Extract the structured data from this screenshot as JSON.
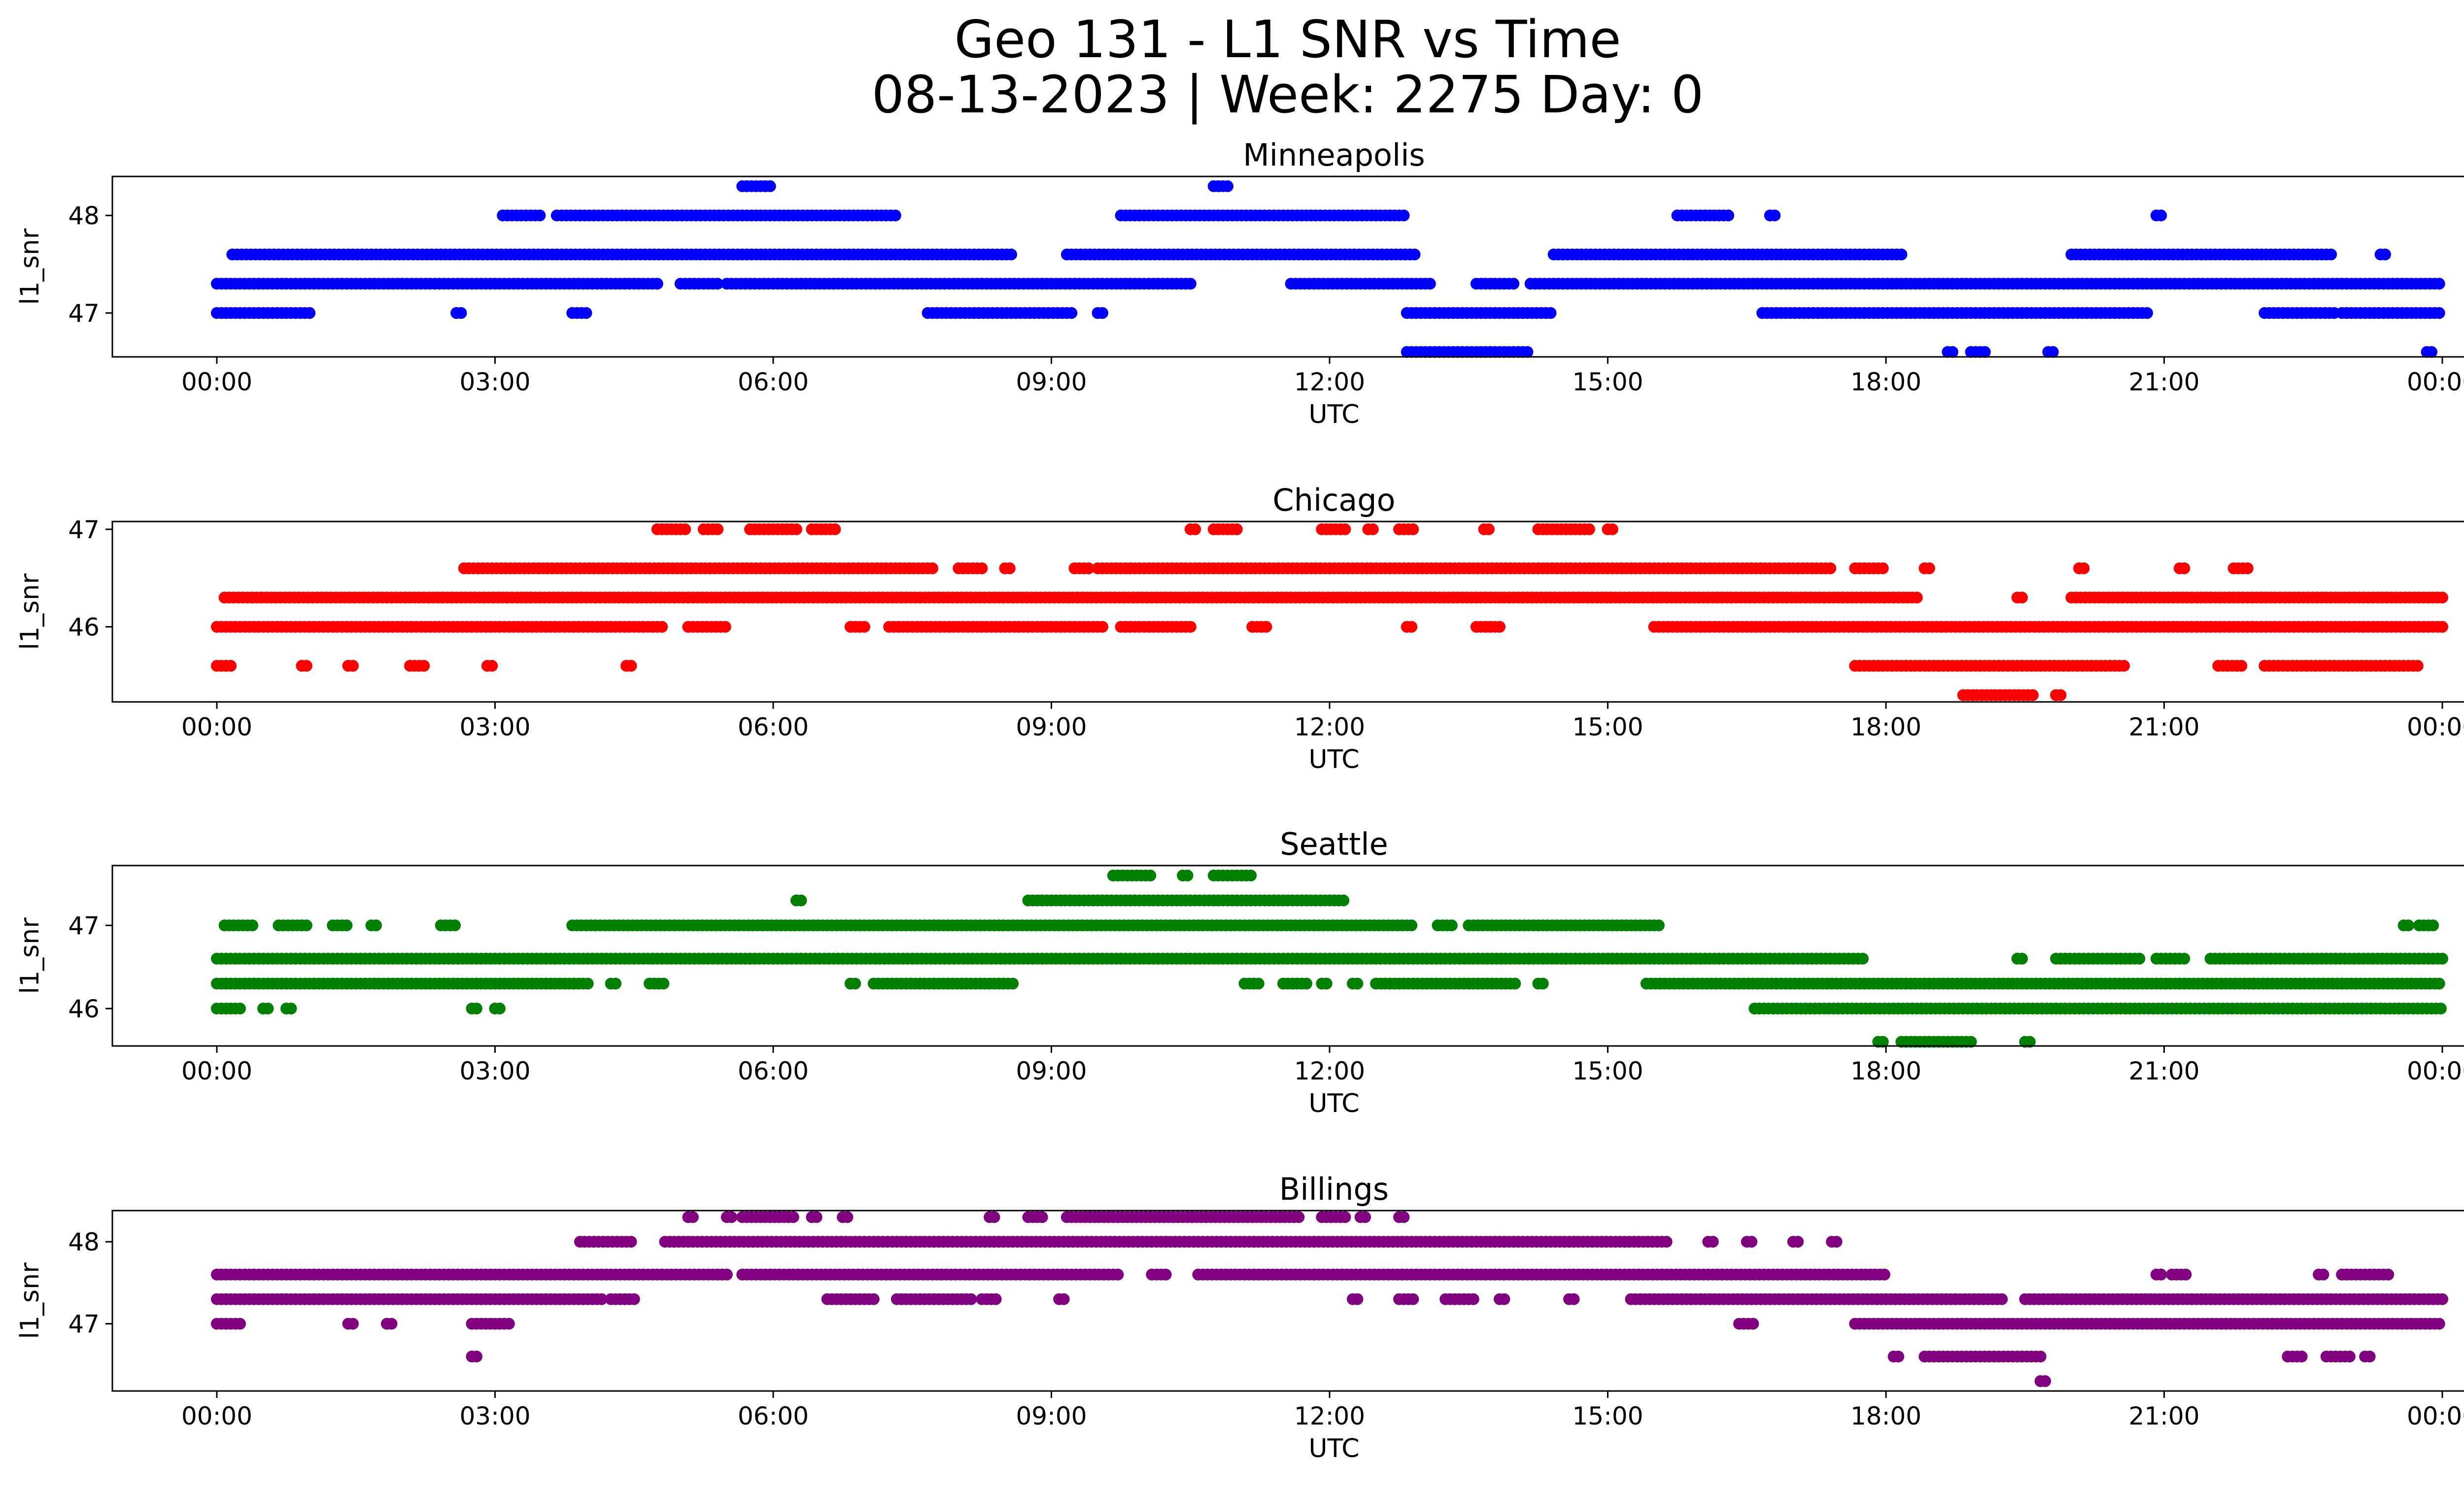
{
  "figure": {
    "title_line1": "Geo 131 - L1 SNR vs Time",
    "title_line2": "08-13-2023 | Week: 2275 Day: 0"
  },
  "chart_data": [
    {
      "type": "scatter",
      "title": "Minneapolis",
      "color": "#0000ff",
      "xlabel": "UTC",
      "ylabel": "l1_snr",
      "xlim": [
        "23:00",
        "00:22"
      ],
      "ylim": [
        46.55,
        48.4
      ],
      "xticks": [
        "00:00",
        "03:00",
        "06:00",
        "09:00",
        "12:00",
        "15:00",
        "18:00",
        "21:00",
        "00:00"
      ],
      "yticks": [
        47,
        48
      ],
      "grid": false,
      "bands": [
        {
          "y": 47.0,
          "segments": [
            [
              "00:00",
              "01:00"
            ],
            [
              "02:35",
              "02:40"
            ],
            [
              "03:50",
              "04:00"
            ],
            [
              "07:40",
              "09:15"
            ],
            [
              "09:30",
              "09:35"
            ],
            [
              "12:50",
              "14:25"
            ],
            [
              "16:40",
              "20:50"
            ],
            [
              "22:05",
              "22:50"
            ],
            [
              "22:55",
              "24:00"
            ]
          ]
        },
        {
          "y": 47.3,
          "segments": [
            [
              "00:00",
              "04:45"
            ],
            [
              "05:00",
              "05:25"
            ],
            [
              "05:30",
              "10:30"
            ],
            [
              "11:35",
              "13:05"
            ],
            [
              "13:35",
              "14:00"
            ],
            [
              "14:10",
              "24:00"
            ]
          ]
        },
        {
          "y": 47.6,
          "segments": [
            [
              "00:10",
              "08:35"
            ],
            [
              "09:10",
              "12:55"
            ],
            [
              "14:25",
              "18:10"
            ],
            [
              "20:00",
              "22:50"
            ],
            [
              "23:20",
              "23:25"
            ]
          ]
        },
        {
          "y": 48.0,
          "segments": [
            [
              "03:05",
              "03:30"
            ],
            [
              "03:40",
              "07:20"
            ],
            [
              "09:45",
              "12:50"
            ],
            [
              "15:45",
              "16:20"
            ],
            [
              "16:45",
              "16:50"
            ],
            [
              "20:55",
              "21:00"
            ]
          ]
        },
        {
          "y": 48.3,
          "segments": [
            [
              "05:40",
              "06:00"
            ],
            [
              "10:45",
              "10:55"
            ]
          ]
        },
        {
          "y": 46.6,
          "segments": [
            [
              "12:50",
              "14:10"
            ],
            [
              "18:40",
              "18:45"
            ],
            [
              "18:55",
              "19:05"
            ],
            [
              "19:45",
              "19:50"
            ],
            [
              "23:50",
              "23:55"
            ]
          ]
        }
      ]
    },
    {
      "type": "scatter",
      "title": "Chicago",
      "color": "#ff0000",
      "xlabel": "UTC",
      "ylabel": "l1_snr",
      "xlim": [
        "23:00",
        "00:22"
      ],
      "ylim": [
        45.23,
        47.08
      ],
      "xticks": [
        "00:00",
        "03:00",
        "06:00",
        "09:00",
        "12:00",
        "15:00",
        "18:00",
        "21:00",
        "00:00"
      ],
      "yticks": [
        46,
        47
      ],
      "grid": false,
      "bands": [
        {
          "y": 45.6,
          "segments": [
            [
              "00:00",
              "00:10"
            ],
            [
              "00:55",
              "01:00"
            ],
            [
              "01:25",
              "01:30"
            ],
            [
              "02:05",
              "02:15"
            ],
            [
              "02:55",
              "03:00"
            ],
            [
              "04:25",
              "04:30"
            ],
            [
              "17:40",
              "20:35"
            ],
            [
              "21:35",
              "21:50"
            ],
            [
              "22:05",
              "23:45"
            ]
          ]
        },
        {
          "y": 45.3,
          "segments": [
            [
              "18:50",
              "19:35"
            ],
            [
              "19:50",
              "19:55"
            ]
          ]
        },
        {
          "y": 46.0,
          "segments": [
            [
              "00:00",
              "04:50"
            ],
            [
              "05:05",
              "05:30"
            ],
            [
              "06:50",
              "07:00"
            ],
            [
              "07:15",
              "09:35"
            ],
            [
              "09:45",
              "10:30"
            ],
            [
              "11:10",
              "11:20"
            ],
            [
              "12:50",
              "12:55"
            ],
            [
              "13:35",
              "13:50"
            ],
            [
              "15:30",
              "24:00"
            ]
          ]
        },
        {
          "y": 46.3,
          "segments": [
            [
              "00:05",
              "18:20"
            ],
            [
              "19:25",
              "19:30"
            ],
            [
              "20:00",
              "24:00"
            ]
          ]
        },
        {
          "y": 46.6,
          "segments": [
            [
              "02:40",
              "07:45"
            ],
            [
              "08:00",
              "08:15"
            ],
            [
              "08:30",
              "08:35"
            ],
            [
              "09:15",
              "09:25"
            ],
            [
              "09:30",
              "17:25"
            ],
            [
              "17:40",
              "18:00"
            ],
            [
              "18:25",
              "18:30"
            ],
            [
              "20:05",
              "20:10"
            ],
            [
              "21:10",
              "21:15"
            ],
            [
              "21:45",
              "21:55"
            ]
          ]
        },
        {
          "y": 47.0,
          "segments": [
            [
              "04:45",
              "05:05"
            ],
            [
              "05:15",
              "05:25"
            ],
            [
              "05:45",
              "06:15"
            ],
            [
              "06:25",
              "06:40"
            ],
            [
              "10:30",
              "10:35"
            ],
            [
              "10:45",
              "11:00"
            ],
            [
              "11:55",
              "12:10"
            ],
            [
              "12:25",
              "12:30"
            ],
            [
              "12:45",
              "12:55"
            ],
            [
              "13:40",
              "13:45"
            ],
            [
              "14:15",
              "14:50"
            ],
            [
              "15:00",
              "15:05"
            ]
          ]
        }
      ]
    },
    {
      "type": "scatter",
      "title": "Seattle",
      "color": "#008000",
      "xlabel": "UTC",
      "ylabel": "l1_snr",
      "xlim": [
        "23:00",
        "00:22"
      ],
      "ylim": [
        45.55,
        47.72
      ],
      "xticks": [
        "00:00",
        "03:00",
        "06:00",
        "09:00",
        "12:00",
        "15:00",
        "18:00",
        "21:00",
        "00:00"
      ],
      "yticks": [
        46,
        47
      ],
      "grid": false,
      "bands": [
        {
          "y": 46.0,
          "segments": [
            [
              "00:00",
              "00:15"
            ],
            [
              "00:30",
              "00:35"
            ],
            [
              "00:45",
              "00:50"
            ],
            [
              "02:45",
              "02:50"
            ],
            [
              "03:00",
              "03:05"
            ],
            [
              "16:35",
              "24:00"
            ]
          ]
        },
        {
          "y": 46.3,
          "segments": [
            [
              "00:00",
              "04:00"
            ],
            [
              "04:15",
              "04:20"
            ],
            [
              "04:40",
              "04:50"
            ],
            [
              "06:50",
              "06:55"
            ],
            [
              "07:05",
              "08:35"
            ],
            [
              "11:05",
              "11:15"
            ],
            [
              "11:30",
              "11:45"
            ],
            [
              "11:55",
              "12:00"
            ],
            [
              "12:15",
              "12:20"
            ],
            [
              "12:30",
              "14:00"
            ],
            [
              "14:15",
              "14:20"
            ],
            [
              "15:25",
              "24:00"
            ]
          ]
        },
        {
          "y": 46.6,
          "segments": [
            [
              "00:00",
              "17:45"
            ],
            [
              "19:25",
              "19:30"
            ],
            [
              "19:50",
              "20:45"
            ],
            [
              "20:55",
              "21:15"
            ],
            [
              "21:30",
              "24:00"
            ]
          ]
        },
        {
          "y": 47.0,
          "segments": [
            [
              "00:05",
              "00:25"
            ],
            [
              "00:40",
              "01:00"
            ],
            [
              "01:15",
              "01:25"
            ],
            [
              "01:40",
              "01:45"
            ],
            [
              "02:25",
              "02:35"
            ],
            [
              "03:50",
              "12:55"
            ],
            [
              "13:10",
              "13:20"
            ],
            [
              "13:30",
              "15:35"
            ],
            [
              "23:35",
              "23:40"
            ],
            [
              "23:45",
              "23:55"
            ]
          ]
        },
        {
          "y": 47.3,
          "segments": [
            [
              "06:15",
              "06:20"
            ],
            [
              "08:45",
              "12:10"
            ]
          ]
        },
        {
          "y": 47.6,
          "segments": [
            [
              "09:40",
              "10:05"
            ],
            [
              "10:25",
              "10:30"
            ],
            [
              "10:45",
              "11:10"
            ]
          ]
        },
        {
          "y": 45.6,
          "segments": [
            [
              "17:55",
              "18:00"
            ],
            [
              "18:10",
              "18:55"
            ],
            [
              "19:30",
              "19:35"
            ]
          ]
        }
      ]
    },
    {
      "type": "scatter",
      "title": "Billings",
      "color": "#800080",
      "xlabel": "UTC",
      "ylabel": "l1_snr",
      "xlim": [
        "23:00",
        "00:22"
      ],
      "ylim": [
        46.18,
        48.38
      ],
      "xticks": [
        "00:00",
        "03:00",
        "06:00",
        "09:00",
        "12:00",
        "15:00",
        "18:00",
        "21:00",
        "00:00"
      ],
      "yticks": [
        47,
        48
      ],
      "grid": false,
      "bands": [
        {
          "y": 47.0,
          "segments": [
            [
              "00:00",
              "00:15"
            ],
            [
              "01:25",
              "01:30"
            ],
            [
              "01:50",
              "01:55"
            ],
            [
              "02:45",
              "03:10"
            ],
            [
              "16:25",
              "16:35"
            ],
            [
              "17:40",
              "24:00"
            ]
          ]
        },
        {
          "y": 47.3,
          "segments": [
            [
              "00:00",
              "04:10"
            ],
            [
              "04:15",
              "04:30"
            ],
            [
              "06:35",
              "07:05"
            ],
            [
              "07:20",
              "08:10"
            ],
            [
              "08:15",
              "08:25"
            ],
            [
              "09:05",
              "09:10"
            ],
            [
              "12:15",
              "12:20"
            ],
            [
              "12:45",
              "12:55"
            ],
            [
              "13:15",
              "13:35"
            ],
            [
              "13:50",
              "13:55"
            ],
            [
              "14:35",
              "14:40"
            ],
            [
              "15:15",
              "19:15"
            ],
            [
              "19:30",
              "24:00"
            ]
          ]
        },
        {
          "y": 47.6,
          "segments": [
            [
              "00:00",
              "05:30"
            ],
            [
              "05:40",
              "09:45"
            ],
            [
              "10:05",
              "10:15"
            ],
            [
              "10:35",
              "18:00"
            ],
            [
              "20:55",
              "21:00"
            ],
            [
              "21:05",
              "21:15"
            ],
            [
              "22:40",
              "22:45"
            ],
            [
              "22:55",
              "23:25"
            ]
          ]
        },
        {
          "y": 48.0,
          "segments": [
            [
              "03:55",
              "04:30"
            ],
            [
              "04:50",
              "15:40"
            ],
            [
              "16:05",
              "16:10"
            ],
            [
              "16:30",
              "16:35"
            ],
            [
              "17:00",
              "17:05"
            ],
            [
              "17:25",
              "17:30"
            ]
          ]
        },
        {
          "y": 48.3,
          "segments": [
            [
              "05:05",
              "05:10"
            ],
            [
              "05:30",
              "05:35"
            ],
            [
              "05:40",
              "06:15"
            ],
            [
              "06:25",
              "06:30"
            ],
            [
              "06:45",
              "06:50"
            ],
            [
              "08:20",
              "08:25"
            ],
            [
              "08:45",
              "08:55"
            ],
            [
              "09:10",
              "11:40"
            ],
            [
              "11:55",
              "12:10"
            ],
            [
              "12:20",
              "12:25"
            ],
            [
              "12:45",
              "12:50"
            ]
          ]
        },
        {
          "y": 46.6,
          "segments": [
            [
              "02:45",
              "02:50"
            ],
            [
              "18:05",
              "18:10"
            ],
            [
              "18:25",
              "19:40"
            ],
            [
              "22:20",
              "22:30"
            ],
            [
              "22:45",
              "23:00"
            ],
            [
              "23:10",
              "23:15"
            ]
          ]
        },
        {
          "y": 46.3,
          "segments": [
            [
              "19:40",
              "19:45"
            ]
          ]
        }
      ]
    }
  ]
}
